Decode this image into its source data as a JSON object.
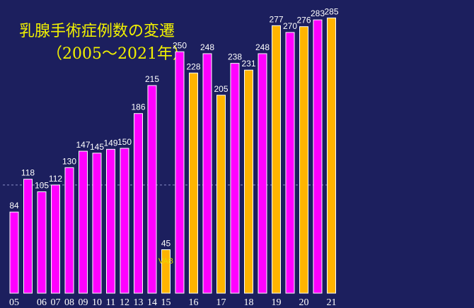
{
  "colors": {
    "background": "#1c1f5e",
    "title": "#f2f200",
    "magenta": "#ff00ff",
    "orange": "#ffb400",
    "label": "#ffffff",
    "annotation": "#e8d800"
  },
  "title_line1": "乳腺手術症例数の変遷",
  "title_line2": "（2005〜2021年）",
  "chart_data": {
    "type": "bar",
    "title": "乳腺手術症例数の変遷（2005〜2021年）",
    "ylim": [
      0,
      300
    ],
    "grid": false,
    "reference_line": 112,
    "annotations": [
      {
        "text": "VAB",
        "year_label": "15"
      }
    ],
    "years": [
      {
        "label": "05",
        "bars": [
          {
            "series": "magenta",
            "value": 84
          },
          {
            "series": "magenta",
            "value": 118
          }
        ]
      },
      {
        "label": "06",
        "bars": [
          {
            "series": "magenta",
            "value": 105
          }
        ]
      },
      {
        "label": "07",
        "bars": [
          {
            "series": "magenta",
            "value": 112
          }
        ]
      },
      {
        "label": "08",
        "bars": [
          {
            "series": "magenta",
            "value": 130
          }
        ]
      },
      {
        "label": "09",
        "bars": [
          {
            "series": "magenta",
            "value": 147
          }
        ]
      },
      {
        "label": "10",
        "bars": [
          {
            "series": "magenta",
            "value": 145
          }
        ]
      },
      {
        "label": "11",
        "bars": [
          {
            "series": "magenta",
            "value": 149
          }
        ]
      },
      {
        "label": "12",
        "bars": [
          {
            "series": "magenta",
            "value": 150
          }
        ]
      },
      {
        "label": "13",
        "bars": [
          {
            "series": "magenta",
            "value": 186
          }
        ]
      },
      {
        "label": "14",
        "bars": [
          {
            "series": "magenta",
            "value": 215
          }
        ]
      },
      {
        "label": "15",
        "bars": [
          {
            "series": "orange",
            "value": 45
          },
          {
            "series": "magenta",
            "value": 250
          }
        ]
      },
      {
        "label": "16",
        "bars": [
          {
            "series": "orange",
            "value": 228
          },
          {
            "series": "magenta",
            "value": 248
          }
        ]
      },
      {
        "label": "17",
        "bars": [
          {
            "series": "orange",
            "value": 205
          },
          {
            "series": "magenta",
            "value": 238
          }
        ]
      },
      {
        "label": "18",
        "bars": [
          {
            "series": "orange",
            "value": 231
          },
          {
            "series": "magenta",
            "value": 248
          }
        ]
      },
      {
        "label": "19",
        "bars": [
          {
            "series": "orange",
            "value": 277
          },
          {
            "series": "magenta",
            "value": 270
          }
        ]
      },
      {
        "label": "20",
        "bars": [
          {
            "series": "orange",
            "value": 276
          },
          {
            "series": "magenta",
            "value": 283
          }
        ]
      },
      {
        "label": "21",
        "bars": [
          {
            "series": "orange",
            "value": 285
          }
        ]
      }
    ]
  }
}
